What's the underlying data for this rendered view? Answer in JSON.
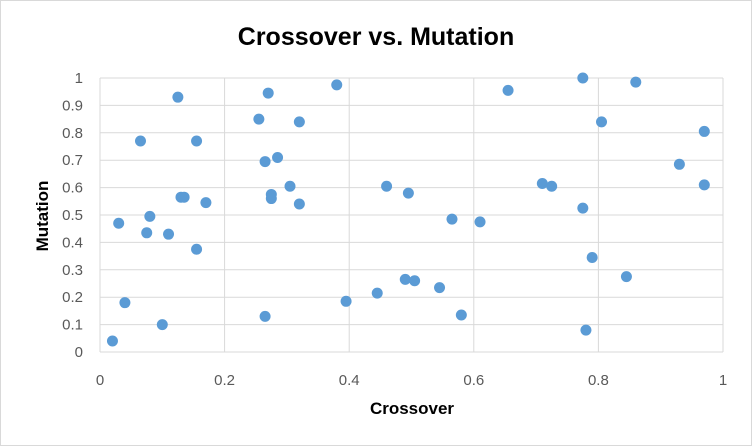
{
  "chart_data": {
    "type": "scatter",
    "title": "Crossover vs. Mutation",
    "xlabel": "Crossover",
    "ylabel": "Mutation",
    "xlim": [
      0,
      1
    ],
    "ylim": [
      0,
      1
    ],
    "x_ticks": [
      "0",
      "0.2",
      "0.4",
      "0.6",
      "0.8",
      "1"
    ],
    "y_ticks": [
      "0",
      "0.1",
      "0.2",
      "0.3",
      "0.4",
      "0.5",
      "0.6",
      "0.7",
      "0.8",
      "0.9",
      "1"
    ],
    "grid": "major gridlines on both axes",
    "legend": "none",
    "marker_color": "#5B9BD5",
    "grid_color": "#d9d9d9",
    "series": [
      {
        "points": [
          [
            0.02,
            0.04
          ],
          [
            0.03,
            0.47
          ],
          [
            0.04,
            0.18
          ],
          [
            0.065,
            0.77
          ],
          [
            0.075,
            0.435
          ],
          [
            0.08,
            0.495
          ],
          [
            0.1,
            0.1
          ],
          [
            0.11,
            0.43
          ],
          [
            0.125,
            0.93
          ],
          [
            0.13,
            0.565
          ],
          [
            0.135,
            0.565
          ],
          [
            0.155,
            0.77
          ],
          [
            0.155,
            0.375
          ],
          [
            0.17,
            0.545
          ],
          [
            0.255,
            0.85
          ],
          [
            0.265,
            0.695
          ],
          [
            0.265,
            0.13
          ],
          [
            0.27,
            0.945
          ],
          [
            0.275,
            0.575
          ],
          [
            0.275,
            0.56
          ],
          [
            0.285,
            0.71
          ],
          [
            0.305,
            0.605
          ],
          [
            0.32,
            0.84
          ],
          [
            0.32,
            0.54
          ],
          [
            0.38,
            0.975
          ],
          [
            0.395,
            0.185
          ],
          [
            0.445,
            0.215
          ],
          [
            0.46,
            0.605
          ],
          [
            0.49,
            0.265
          ],
          [
            0.495,
            0.58
          ],
          [
            0.505,
            0.26
          ],
          [
            0.545,
            0.235
          ],
          [
            0.565,
            0.485
          ],
          [
            0.58,
            0.135
          ],
          [
            0.61,
            0.475
          ],
          [
            0.655,
            0.955
          ],
          [
            0.71,
            0.615
          ],
          [
            0.725,
            0.605
          ],
          [
            0.775,
            0.525
          ],
          [
            0.775,
            1.0
          ],
          [
            0.78,
            0.08
          ],
          [
            0.79,
            0.345
          ],
          [
            0.805,
            0.84
          ],
          [
            0.845,
            0.275
          ],
          [
            0.86,
            0.985
          ],
          [
            0.93,
            0.685
          ],
          [
            0.97,
            0.805
          ],
          [
            0.97,
            0.61
          ]
        ]
      }
    ]
  }
}
